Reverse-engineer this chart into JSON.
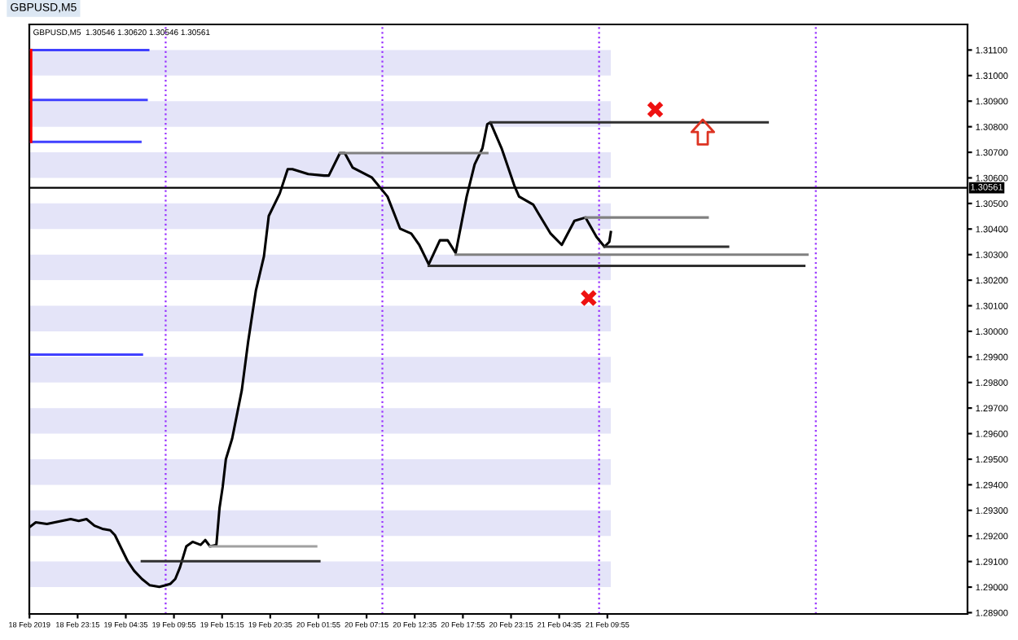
{
  "chart_data": {
    "type": "line",
    "title": "GBPUSD,M5",
    "subtitle": "GBPUSD,M5  1.30546 1.30620 1.30546 1.30561",
    "xlim": [
      "2019-02-18T17:54",
      "2019-02-23T01:48"
    ],
    "ylim": [
      1.28895,
      1.312
    ],
    "xticks": [
      {
        "value": "2019-02-18T17:55",
        "label": "18 Feb 2019"
      },
      {
        "value": "2019-02-18T23:15",
        "label": "18 Feb 23:15"
      },
      {
        "value": "2019-02-19T04:35",
        "label": "19 Feb 04:35"
      },
      {
        "value": "2019-02-19T09:55",
        "label": "19 Feb 09:55"
      },
      {
        "value": "2019-02-19T15:15",
        "label": "19 Feb 15:15"
      },
      {
        "value": "2019-02-19T20:35",
        "label": "19 Feb 20:35"
      },
      {
        "value": "2019-02-20T01:55",
        "label": "20 Feb 01:55"
      },
      {
        "value": "2019-02-20T07:15",
        "label": "20 Feb 07:15"
      },
      {
        "value": "2019-02-20T12:35",
        "label": "20 Feb 12:35"
      },
      {
        "value": "2019-02-20T17:55",
        "label": "20 Feb 17:55"
      },
      {
        "value": "2019-02-20T23:15",
        "label": "20 Feb 23:15"
      },
      {
        "value": "2019-02-21T04:35",
        "label": "21 Feb 04:35"
      },
      {
        "value": "2019-02-21T09:55",
        "label": "21 Feb 09:55"
      }
    ],
    "yticks": [
      {
        "value": 1.289,
        "label": "1.28900"
      },
      {
        "value": 1.29,
        "label": "1.29000"
      },
      {
        "value": 1.291,
        "label": "1.29100"
      },
      {
        "value": 1.292,
        "label": "1.29200"
      },
      {
        "value": 1.293,
        "label": "1.29300"
      },
      {
        "value": 1.294,
        "label": "1.29400"
      },
      {
        "value": 1.295,
        "label": "1.29500"
      },
      {
        "value": 1.296,
        "label": "1.29600"
      },
      {
        "value": 1.297,
        "label": "1.29700"
      },
      {
        "value": 1.298,
        "label": "1.29800"
      },
      {
        "value": 1.299,
        "label": "1.29900"
      },
      {
        "value": 1.3,
        "label": "1.30000"
      },
      {
        "value": 1.301,
        "label": "1.30100"
      },
      {
        "value": 1.302,
        "label": "1.30200"
      },
      {
        "value": 1.303,
        "label": "1.30300"
      },
      {
        "value": 1.304,
        "label": "1.30400"
      },
      {
        "value": 1.305,
        "label": "1.30500"
      },
      {
        "value": 1.306,
        "label": "1.30600"
      },
      {
        "value": 1.307,
        "label": "1.30700"
      },
      {
        "value": 1.308,
        "label": "1.30800"
      },
      {
        "value": 1.309,
        "label": "1.30900"
      },
      {
        "value": 1.31,
        "label": "1.31000"
      },
      {
        "value": 1.311,
        "label": "1.31100"
      }
    ],
    "grid": false,
    "legend": false,
    "bands": [
      {
        "axis": "y",
        "from": 1.31,
        "to": 1.311,
        "color": "#e4e4f8"
      },
      {
        "axis": "y",
        "from": 1.308,
        "to": 1.309,
        "color": "#e4e4f8"
      },
      {
        "axis": "y",
        "from": 1.306,
        "to": 1.307,
        "color": "#e4e4f8"
      },
      {
        "axis": "y",
        "from": 1.304,
        "to": 1.305,
        "color": "#e4e4f8"
      },
      {
        "axis": "y",
        "from": 1.302,
        "to": 1.303,
        "color": "#e4e4f8"
      },
      {
        "axis": "y",
        "from": 1.3,
        "to": 1.301,
        "color": "#e4e4f8"
      },
      {
        "axis": "y",
        "from": 1.298,
        "to": 1.299,
        "color": "#e4e4f8"
      },
      {
        "axis": "y",
        "from": 1.296,
        "to": 1.297,
        "color": "#e4e4f8"
      },
      {
        "axis": "y",
        "from": 1.294,
        "to": 1.295,
        "color": "#e4e4f8"
      },
      {
        "axis": "y",
        "from": 1.292,
        "to": 1.293,
        "color": "#e4e4f8"
      },
      {
        "axis": "y",
        "from": 1.29,
        "to": 1.291,
        "color": "#e4e4f8"
      }
    ],
    "ref_lines": [
      {
        "axis": "y",
        "value": 1.30561,
        "label": "1.30561",
        "color": "#000000",
        "line_style": "solid"
      },
      {
        "axis": "x",
        "value": "2019-02-19T09:00",
        "color": "#9933ff",
        "line_style": "dotted"
      },
      {
        "axis": "x",
        "value": "2019-02-20T09:00",
        "color": "#9933ff",
        "line_style": "dotted"
      },
      {
        "axis": "x",
        "value": "2019-02-21T09:00",
        "color": "#9933ff",
        "line_style": "dotted"
      },
      {
        "axis": "x",
        "value": "2019-02-22T09:00",
        "color": "#9933ff",
        "line_style": "dotted"
      }
    ],
    "series": [
      {
        "color": "#000000",
        "marker": "none",
        "line_style": "solid",
        "x": [
          "2019-02-18T17:55",
          "2019-02-18T18:37",
          "2019-02-18T19:51",
          "2019-02-18T20:43",
          "2019-02-18T22:29",
          "2019-02-18T23:22",
          "2019-02-19T00:14",
          "2019-02-19T01:07",
          "2019-02-19T01:59",
          "2019-02-19T02:52",
          "2019-02-19T03:23",
          "2019-02-19T04:05",
          "2019-02-19T04:47",
          "2019-02-19T05:30",
          "2019-02-19T06:22",
          "2019-02-19T07:15",
          "2019-02-19T08:18",
          "2019-02-19T09:00",
          "2019-02-19T09:32",
          "2019-02-19T10:04",
          "2019-02-19T10:35",
          "2019-02-19T11:17",
          "2019-02-19T11:59",
          "2019-02-19T12:52",
          "2019-02-19T13:23",
          "2019-02-19T13:55",
          "2019-02-19T14:37",
          "2019-02-19T14:58",
          "2019-02-19T15:19",
          "2019-02-19T15:40",
          "2019-02-19T16:22",
          "2019-02-19T17:26",
          "2019-02-19T18:08",
          "2019-02-19T19:00",
          "2019-02-19T19:53",
          "2019-02-19T20:25",
          "2019-02-19T21:38",
          "2019-02-19T22:31",
          "2019-02-19T23:02",
          "2019-02-20T00:47",
          "2019-02-20T02:33",
          "2019-02-20T03:04",
          "2019-02-20T04:18",
          "2019-02-20T04:50",
          "2019-02-20T05:43",
          "2019-02-20T07:49",
          "2019-02-20T09:34",
          "2019-02-20T10:58",
          "2019-02-20T12:12",
          "2019-02-20T13:05",
          "2019-02-20T14:08",
          "2019-02-20T15:22",
          "2019-02-20T16:14",
          "2019-02-20T17:07",
          "2019-02-20T18:20",
          "2019-02-20T19:13",
          "2019-02-20T20:05",
          "2019-02-20T20:37",
          "2019-02-20T20:58",
          "2019-02-20T22:12",
          "2019-02-20T23:36",
          "2019-02-21T00:08",
          "2019-02-21T01:43",
          "2019-02-21T02:14",
          "2019-02-21T03:38",
          "2019-02-21T04:52",
          "2019-02-21T06:16",
          "2019-02-21T07:30",
          "2019-02-21T08:43",
          "2019-02-21T09:36",
          "2019-02-21T10:08",
          "2019-02-21T10:18"
        ],
        "values": [
          1.29234,
          1.29253,
          1.29247,
          1.29253,
          1.29266,
          1.29259,
          1.29266,
          1.2924,
          1.29228,
          1.29222,
          1.29203,
          1.29152,
          1.29102,
          1.29064,
          1.29032,
          1.29007,
          1.29001,
          1.29007,
          1.29013,
          1.29032,
          1.29077,
          1.29159,
          1.29177,
          1.29165,
          1.29184,
          1.29159,
          1.29165,
          1.2931,
          1.29392,
          1.295,
          1.29581,
          1.2977,
          1.29959,
          1.30161,
          1.30293,
          1.30451,
          1.30539,
          1.30634,
          1.30634,
          1.30615,
          1.30609,
          1.30609,
          1.30697,
          1.30697,
          1.3064,
          1.30602,
          1.30527,
          1.30401,
          1.30382,
          1.30338,
          1.30262,
          1.30356,
          1.30356,
          1.30306,
          1.30527,
          1.30653,
          1.30716,
          1.3081,
          1.30817,
          1.30716,
          1.30571,
          1.30527,
          1.30495,
          1.30464,
          1.30382,
          1.30338,
          1.30432,
          1.30445,
          1.30369,
          1.30331,
          1.3035,
          1.30388
        ]
      },
      {
        "type": "line",
        "color": "#808080",
        "marker": "none",
        "line_style": "solid",
        "x": [
          "2019-02-20T04:18",
          "2019-02-20T20:37"
        ],
        "values": [
          1.30697,
          1.30697
        ]
      },
      {
        "type": "line",
        "color": "#303030",
        "marker": "none",
        "line_style": "solid",
        "x": [
          "2019-02-20T20:58",
          "2019-02-22T03:40"
        ],
        "values": [
          1.30817,
          1.30817
        ]
      },
      {
        "type": "line",
        "color": "#808080",
        "marker": "none",
        "line_style": "solid",
        "x": [
          "2019-02-21T07:30",
          "2019-02-21T21:01"
        ],
        "values": [
          1.30445,
          1.30445
        ]
      },
      {
        "type": "line",
        "color": "#303030",
        "marker": "none",
        "line_style": "solid",
        "x": [
          "2019-02-21T09:36",
          "2019-02-21T23:17"
        ],
        "values": [
          1.30331,
          1.30331
        ]
      },
      {
        "type": "line",
        "color": "#808080",
        "marker": "none",
        "line_style": "solid",
        "x": [
          "2019-02-20T17:07",
          "2019-02-22T08:04"
        ],
        "values": [
          1.303,
          1.303
        ]
      },
      {
        "type": "line",
        "color": "#303030",
        "marker": "none",
        "line_style": "solid",
        "x": [
          "2019-02-20T14:08",
          "2019-02-22T07:43"
        ],
        "values": [
          1.30256,
          1.30256
        ]
      },
      {
        "type": "line",
        "color": "#a0a0a0",
        "marker": "none",
        "line_style": "solid",
        "x": [
          "2019-02-19T13:55",
          "2019-02-20T01:40"
        ],
        "values": [
          1.29159,
          1.29159
        ]
      },
      {
        "type": "line",
        "color": "#303030",
        "marker": "none",
        "line_style": "solid",
        "x": [
          "2019-02-19T06:22",
          "2019-02-20T02:01"
        ],
        "values": [
          1.29101,
          1.29101
        ]
      },
      {
        "type": "line",
        "color": "#4040ff",
        "marker": "none",
        "line_style": "solid",
        "x": [
          "2019-02-18T18:06",
          "2019-02-19T07:04"
        ],
        "values": [
          1.311,
          1.311
        ]
      },
      {
        "type": "line",
        "color": "#4040ff",
        "marker": "none",
        "line_style": "solid",
        "x": [
          "2019-02-18T18:06",
          "2019-02-19T06:53"
        ],
        "values": [
          1.30905,
          1.30905
        ]
      },
      {
        "type": "line",
        "color": "#4040ff",
        "marker": "none",
        "line_style": "solid",
        "x": [
          "2019-02-18T18:06",
          "2019-02-19T06:12"
        ],
        "values": [
          1.30741,
          1.30741
        ]
      },
      {
        "type": "line",
        "color": "#4040ff",
        "marker": "none",
        "line_style": "solid",
        "x": [
          "2019-02-18T18:06",
          "2019-02-19T06:22"
        ],
        "values": [
          1.29909,
          1.29909
        ]
      },
      {
        "type": "line",
        "color": "#ff0000",
        "marker": "none",
        "line_style": "solid",
        "x": [
          "2019-02-18T18:06",
          "2019-02-18T18:06"
        ],
        "values": [
          1.311,
          1.30741
        ]
      },
      {
        "type": "scatter",
        "color": "#ee1111",
        "marker": "cross",
        "x": [
          "2019-02-21T15:13",
          "2019-02-21T07:51"
        ],
        "values": [
          1.30867,
          1.3013
        ]
      },
      {
        "type": "scatter",
        "color": "#dd3322",
        "x": [
          "2019-02-21T20:29"
        ],
        "values": [
          1.30779
        ]
      }
    ]
  }
}
